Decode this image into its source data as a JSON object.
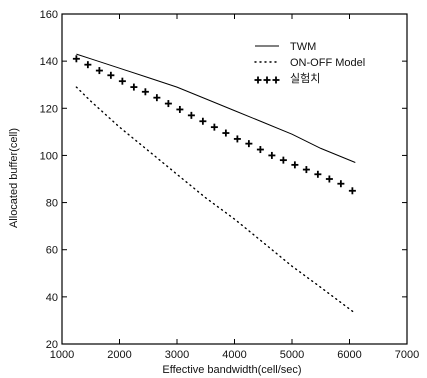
{
  "chart_data": {
    "type": "line",
    "title": "",
    "xlabel": "Effective bandwidth(cell/sec)",
    "ylabel": "Allocated buffer(cell)",
    "xlim": [
      1000,
      7000
    ],
    "ylim": [
      20,
      160
    ],
    "xticks": [
      1000,
      2000,
      3000,
      4000,
      5000,
      6000,
      7000
    ],
    "yticks": [
      20,
      40,
      60,
      80,
      100,
      120,
      140,
      160
    ],
    "grid": false,
    "legend_position": "top-right",
    "series": [
      {
        "name": "TWM",
        "style": "solid",
        "x": [
          1250,
          1500,
          2000,
          2500,
          3000,
          3500,
          4000,
          4500,
          5000,
          5500,
          6100
        ],
        "y": [
          143,
          141,
          137,
          133,
          129,
          124,
          119,
          114,
          109,
          103,
          97
        ]
      },
      {
        "name": "ON-OFF Model",
        "style": "dotted",
        "x": [
          1250,
          1500,
          2000,
          2500,
          3000,
          3500,
          4000,
          4500,
          5000,
          5500,
          6100
        ],
        "y": [
          129,
          123,
          112,
          102,
          92,
          82,
          73,
          63,
          53,
          44,
          33
        ]
      },
      {
        "name": "실험치",
        "style": "plus-markers",
        "x": [
          1250,
          1450,
          1650,
          1850,
          2050,
          2250,
          2450,
          2650,
          2850,
          3050,
          3250,
          3450,
          3650,
          3850,
          4050,
          4250,
          4450,
          4650,
          4850,
          5050,
          5250,
          5450,
          5650,
          5850,
          6050
        ],
        "y": [
          141,
          138.5,
          136,
          134,
          131.5,
          129,
          127,
          124.5,
          122,
          119.5,
          117,
          114.5,
          112,
          109.5,
          107,
          105,
          102.5,
          100,
          98,
          96,
          94,
          92,
          90,
          88,
          85
        ]
      }
    ]
  }
}
